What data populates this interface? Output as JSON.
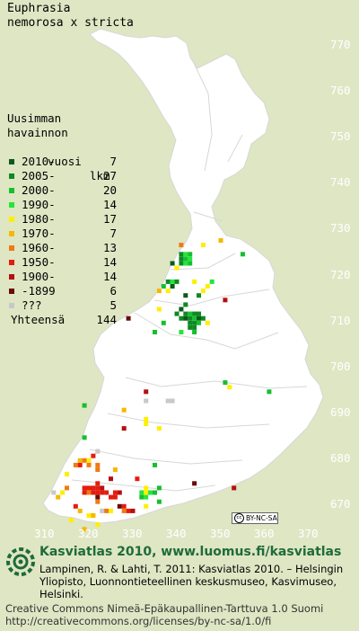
{
  "title_lines": [
    "Euphrasia",
    "nemorosa x stricta"
  ],
  "legend": {
    "header_lines": [
      "Uusimman",
      "havainnon"
    ],
    "col_header_left": "vuosi",
    "col_header_right": "lkm",
    "items": [
      {
        "label": "2010-",
        "count": "7",
        "color": "#0a5a1a"
      },
      {
        "label": "2005-",
        "count": "27",
        "color": "#0d8a23"
      },
      {
        "label": "2000-",
        "count": "20",
        "color": "#16bf2e"
      },
      {
        "label": "1990-",
        "count": "14",
        "color": "#22e63c"
      },
      {
        "label": "1980-",
        "count": "17",
        "color": "#ffee00"
      },
      {
        "label": "1970-",
        "count": "7",
        "color": "#f5b800"
      },
      {
        "label": "1960-",
        "count": "13",
        "color": "#f07a12"
      },
      {
        "label": "1950-",
        "count": "14",
        "color": "#e41c0f"
      },
      {
        "label": "1900-",
        "count": "14",
        "color": "#b41010"
      },
      {
        "label": "-1899",
        "count": "6",
        "color": "#6a0a0a"
      },
      {
        "label": "???",
        "count": "5",
        "color": "#c8c8c8"
      }
    ],
    "total_label": "Yhteensä",
    "total_count": "144"
  },
  "axis": {
    "y_ticks": [
      "770",
      "760",
      "750",
      "740",
      "730",
      "720",
      "710",
      "700",
      "690",
      "680",
      "670"
    ],
    "x_ticks": [
      "310",
      "320",
      "330",
      "340",
      "350",
      "360",
      "370"
    ]
  },
  "map_style": {
    "background": "#dfe6c4",
    "land": "#ffffff",
    "boundary": "#d7d7d7"
  },
  "license_badge": "BY-NC-SA",
  "footer": {
    "title": "Kasviatlas 2010, www.luomus.fi/kasviatlas",
    "citation": "Lampinen, R. & Lahti, T. 2011: Kasviatlas 2010. – Helsingin Yliopisto, Luonnontieteellinen keskusmuseo, Kasvimuseo, Helsinki.",
    "license_line1": "Creative Commons Nimeä-Epäkaupallinen-Tarttuva 1.0 Suomi",
    "license_line2": "http://creativecommons.org/licenses/by-nc-sa/1.0/fi",
    "logo_color": "#1f6b3a"
  },
  "observations": [
    {
      "e": 341,
      "n": 722,
      "c": "#0d8a23"
    },
    {
      "e": 342,
      "n": 722,
      "c": "#22e63c"
    },
    {
      "e": 343,
      "n": 722,
      "c": "#16bf2e"
    },
    {
      "e": 341,
      "n": 721,
      "c": "#0d8a23"
    },
    {
      "e": 342,
      "n": 721,
      "c": "#16bf2e"
    },
    {
      "e": 343,
      "n": 721,
      "c": "#22e63c"
    },
    {
      "e": 339,
      "n": 720,
      "c": "#0a5a1a"
    },
    {
      "e": 341,
      "n": 720,
      "c": "#0d8a23"
    },
    {
      "e": 342,
      "n": 720,
      "c": "#22e63c"
    },
    {
      "e": 343,
      "n": 720,
      "c": "#16bf2e"
    },
    {
      "e": 340,
      "n": 719,
      "c": "#ffee00"
    },
    {
      "e": 341,
      "n": 724,
      "c": "#f07a12"
    },
    {
      "e": 346,
      "n": 724,
      "c": "#ffee00"
    },
    {
      "e": 350,
      "n": 725,
      "c": "#f5b800"
    },
    {
      "e": 344,
      "n": 716,
      "c": "#ffee00"
    },
    {
      "e": 338,
      "n": 716,
      "c": "#0d8a23"
    },
    {
      "e": 339,
      "n": 716,
      "c": "#22e63c"
    },
    {
      "e": 340,
      "n": 716,
      "c": "#0d8a23"
    },
    {
      "e": 337,
      "n": 715,
      "c": "#16bf2e"
    },
    {
      "e": 339,
      "n": 715,
      "c": "#0a5a1a"
    },
    {
      "e": 338,
      "n": 714,
      "c": "#ffee00"
    },
    {
      "e": 336,
      "n": 714,
      "c": "#f5b800"
    },
    {
      "e": 342,
      "n": 713,
      "c": "#0a5a1a"
    },
    {
      "e": 345,
      "n": 713,
      "c": "#0d8a23"
    },
    {
      "e": 346,
      "n": 714,
      "c": "#ffee00"
    },
    {
      "e": 347,
      "n": 715,
      "c": "#ffee00"
    },
    {
      "e": 348,
      "n": 716,
      "c": "#22e63c"
    },
    {
      "e": 355,
      "n": 722,
      "c": "#16bf2e"
    },
    {
      "e": 340,
      "n": 709,
      "c": "#0d8a23"
    },
    {
      "e": 341,
      "n": 710,
      "c": "#0a5a1a"
    },
    {
      "e": 342,
      "n": 709,
      "c": "#0d8a23"
    },
    {
      "e": 343,
      "n": 709,
      "c": "#16bf2e"
    },
    {
      "e": 344,
      "n": 709,
      "c": "#0d8a23"
    },
    {
      "e": 345,
      "n": 709,
      "c": "#0d8a23"
    },
    {
      "e": 341,
      "n": 708,
      "c": "#0d8a23"
    },
    {
      "e": 342,
      "n": 708,
      "c": "#0a5a1a"
    },
    {
      "e": 343,
      "n": 708,
      "c": "#0d8a23"
    },
    {
      "e": 344,
      "n": 708,
      "c": "#16bf2e"
    },
    {
      "e": 345,
      "n": 708,
      "c": "#0a5a1a"
    },
    {
      "e": 346,
      "n": 708,
      "c": "#0d8a23"
    },
    {
      "e": 343,
      "n": 707,
      "c": "#0d8a23"
    },
    {
      "e": 344,
      "n": 707,
      "c": "#0d8a23"
    },
    {
      "e": 345,
      "n": 707,
      "c": "#16bf2e"
    },
    {
      "e": 344,
      "n": 706,
      "c": "#0d8a23"
    },
    {
      "e": 343,
      "n": 706,
      "c": "#0d8a23"
    },
    {
      "e": 342,
      "n": 711,
      "c": "#0d8a23"
    },
    {
      "e": 337,
      "n": 707,
      "c": "#16bf2e"
    },
    {
      "e": 336,
      "n": 710,
      "c": "#ffee00"
    },
    {
      "e": 341,
      "n": 705,
      "c": "#22e63c"
    },
    {
      "e": 344,
      "n": 705,
      "c": "#16bf2e"
    },
    {
      "e": 347,
      "n": 707,
      "c": "#ffee00"
    },
    {
      "e": 351,
      "n": 712,
      "c": "#b41010"
    },
    {
      "e": 329,
      "n": 708,
      "c": "#6a0a0a"
    },
    {
      "e": 335,
      "n": 705,
      "c": "#16bf2e"
    },
    {
      "e": 351,
      "n": 694,
      "c": "#16bf2e"
    },
    {
      "e": 352,
      "n": 693,
      "c": "#ffee00"
    },
    {
      "e": 361,
      "n": 692,
      "c": "#16bf2e"
    },
    {
      "e": 328,
      "n": 688,
      "c": "#f5b800"
    },
    {
      "e": 333,
      "n": 692,
      "c": "#b41010"
    },
    {
      "e": 333,
      "n": 690,
      "c": "#c8c8c8"
    },
    {
      "e": 338,
      "n": 690,
      "c": "#c8c8c8"
    },
    {
      "e": 339,
      "n": 690,
      "c": "#c8c8c8"
    },
    {
      "e": 319,
      "n": 689,
      "c": "#16bf2e"
    },
    {
      "e": 333,
      "n": 686,
      "c": "#ffee00"
    },
    {
      "e": 333,
      "n": 685,
      "c": "#ffee00"
    },
    {
      "e": 336,
      "n": 684,
      "c": "#ffee00"
    },
    {
      "e": 328,
      "n": 684,
      "c": "#b41010"
    },
    {
      "e": 319,
      "n": 682,
      "c": "#16bf2e"
    },
    {
      "e": 322,
      "n": 679,
      "c": "#c8c8c8"
    },
    {
      "e": 321,
      "n": 678,
      "c": "#e41c0f"
    },
    {
      "e": 318,
      "n": 677,
      "c": "#f5b800"
    },
    {
      "e": 319,
      "n": 677,
      "c": "#f07a12"
    },
    {
      "e": 320,
      "n": 677,
      "c": "#ffee00"
    },
    {
      "e": 317,
      "n": 676,
      "c": "#f07a12"
    },
    {
      "e": 318,
      "n": 676,
      "c": "#e41c0f"
    },
    {
      "e": 320,
      "n": 676,
      "c": "#f07a12"
    },
    {
      "e": 322,
      "n": 676,
      "c": "#f07a12"
    },
    {
      "e": 322,
      "n": 675,
      "c": "#f07a12"
    },
    {
      "e": 326,
      "n": 675,
      "c": "#f5b800"
    },
    {
      "e": 325,
      "n": 673,
      "c": "#b41010"
    },
    {
      "e": 315,
      "n": 674,
      "c": "#ffee00"
    },
    {
      "e": 314,
      "n": 670,
      "c": "#ffee00"
    },
    {
      "e": 313,
      "n": 669,
      "c": "#f5b800"
    },
    {
      "e": 312,
      "n": 670,
      "c": "#c8c8c8"
    },
    {
      "e": 319,
      "n": 671,
      "c": "#e41c0f"
    },
    {
      "e": 320,
      "n": 671,
      "c": "#e41c0f"
    },
    {
      "e": 321,
      "n": 671,
      "c": "#e41c0f"
    },
    {
      "e": 322,
      "n": 671,
      "c": "#e41c0f"
    },
    {
      "e": 323,
      "n": 671,
      "c": "#b41010"
    },
    {
      "e": 319,
      "n": 670,
      "c": "#e41c0f"
    },
    {
      "e": 320,
      "n": 670,
      "c": "#f07a12"
    },
    {
      "e": 321,
      "n": 670,
      "c": "#e41c0f"
    },
    {
      "e": 322,
      "n": 670,
      "c": "#e41c0f"
    },
    {
      "e": 323,
      "n": 670,
      "c": "#e41c0f"
    },
    {
      "e": 324,
      "n": 670,
      "c": "#e41c0f"
    },
    {
      "e": 326,
      "n": 670,
      "c": "#e41c0f"
    },
    {
      "e": 327,
      "n": 670,
      "c": "#b41010"
    },
    {
      "e": 322,
      "n": 669,
      "c": "#6a0a0a"
    },
    {
      "e": 325,
      "n": 669,
      "c": "#e41c0f"
    },
    {
      "e": 326,
      "n": 669,
      "c": "#e41c0f"
    },
    {
      "e": 317,
      "n": 667,
      "c": "#e41c0f"
    },
    {
      "e": 322,
      "n": 668,
      "c": "#f07a12"
    },
    {
      "e": 318,
      "n": 666,
      "c": "#f5b800"
    },
    {
      "e": 320,
      "n": 665,
      "c": "#ffee00"
    },
    {
      "e": 321,
      "n": 665,
      "c": "#f5b800"
    },
    {
      "e": 323,
      "n": 666,
      "c": "#c8c8c8"
    },
    {
      "e": 324,
      "n": 666,
      "c": "#f07a12"
    },
    {
      "e": 327,
      "n": 667,
      "c": "#6a0a0a"
    },
    {
      "e": 328,
      "n": 667,
      "c": "#e41c0f"
    },
    {
      "e": 329,
      "n": 666,
      "c": "#e41c0f"
    },
    {
      "e": 328,
      "n": 666,
      "c": "#f07a12"
    },
    {
      "e": 330,
      "n": 666,
      "c": "#b41010"
    },
    {
      "e": 325,
      "n": 666,
      "c": "#ffee00"
    },
    {
      "e": 322,
      "n": 663,
      "c": "#ffee00"
    },
    {
      "e": 316,
      "n": 664,
      "c": "#ffee00"
    },
    {
      "e": 319,
      "n": 662,
      "c": "#f5b800"
    },
    {
      "e": 332,
      "n": 670,
      "c": "#22e63c"
    },
    {
      "e": 333,
      "n": 670,
      "c": "#ffee00"
    },
    {
      "e": 334,
      "n": 670,
      "c": "#22e63c"
    },
    {
      "e": 335,
      "n": 670,
      "c": "#16bf2e"
    },
    {
      "e": 336,
      "n": 671,
      "c": "#16bf2e"
    },
    {
      "e": 332,
      "n": 669,
      "c": "#16bf2e"
    },
    {
      "e": 333,
      "n": 669,
      "c": "#22e63c"
    },
    {
      "e": 333,
      "n": 671,
      "c": "#ffee00"
    },
    {
      "e": 331,
      "n": 673,
      "c": "#e41c0f"
    },
    {
      "e": 336,
      "n": 668,
      "c": "#16bf2e"
    },
    {
      "e": 333,
      "n": 667,
      "c": "#ffee00"
    },
    {
      "e": 335,
      "n": 676,
      "c": "#16bf2e"
    },
    {
      "e": 344,
      "n": 672,
      "c": "#6a0a0a"
    },
    {
      "e": 353,
      "n": 671,
      "c": "#b41010"
    },
    {
      "e": 322,
      "n": 672,
      "c": "#e41c0f"
    },
    {
      "e": 315,
      "n": 671,
      "c": "#f07a12"
    }
  ]
}
